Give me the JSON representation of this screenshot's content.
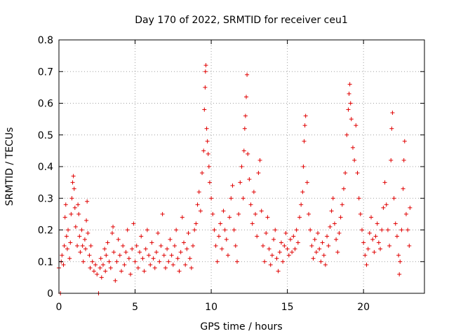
{
  "chart_data": {
    "type": "scatter",
    "title": "Day 170 of 2022, SRMTID for receiver ceu1",
    "xlabel": "GPS time / hours",
    "ylabel": "SRMTID / TECUs",
    "xlim": [
      0,
      24
    ],
    "ylim": [
      0,
      0.8
    ],
    "xticks": [
      0,
      5,
      10,
      15,
      20
    ],
    "xtick_labels": [
      "0",
      "5",
      "10",
      "15",
      "20"
    ],
    "yticks": [
      0,
      0.1,
      0.2,
      0.3,
      0.4,
      0.5,
      0.6,
      0.7,
      0.8
    ],
    "ytick_labels": [
      "0",
      "0.1",
      "0.2",
      "0.3",
      "0.4",
      "0.5",
      "0.6",
      "0.7",
      "0.8"
    ],
    "grid": true,
    "marker": "+",
    "color": "#e00000",
    "series": [
      {
        "name": "SRMTID",
        "points": [
          [
            0.0,
            0.08
          ],
          [
            0.1,
            0.0
          ],
          [
            0.15,
            0.1
          ],
          [
            0.2,
            0.12
          ],
          [
            0.3,
            0.09
          ],
          [
            0.35,
            0.15
          ],
          [
            0.4,
            0.24
          ],
          [
            0.45,
            0.28
          ],
          [
            0.5,
            0.18
          ],
          [
            0.55,
            0.14
          ],
          [
            0.6,
            0.2
          ],
          [
            0.7,
            0.11
          ],
          [
            0.75,
            0.16
          ],
          [
            0.8,
            0.25
          ],
          [
            0.85,
            0.3
          ],
          [
            0.9,
            0.35
          ],
          [
            0.95,
            0.37
          ],
          [
            1.0,
            0.33
          ],
          [
            1.05,
            0.27
          ],
          [
            1.1,
            0.21
          ],
          [
            1.2,
            0.15
          ],
          [
            1.25,
            0.28
          ],
          [
            1.3,
            0.25
          ],
          [
            1.35,
            0.18
          ],
          [
            1.4,
            0.13
          ],
          [
            1.5,
            0.2
          ],
          [
            1.55,
            0.15
          ],
          [
            1.6,
            0.1
          ],
          [
            1.7,
            0.17
          ],
          [
            1.75,
            0.14
          ],
          [
            1.8,
            0.23
          ],
          [
            1.85,
            0.29
          ],
          [
            1.9,
            0.19
          ],
          [
            2.0,
            0.12
          ],
          [
            2.05,
            0.08
          ],
          [
            2.1,
            0.15
          ],
          [
            2.2,
            0.1
          ],
          [
            2.3,
            0.07
          ],
          [
            2.4,
            0.09
          ],
          [
            2.5,
            0.06
          ],
          [
            2.6,
            0.0
          ],
          [
            2.7,
            0.08
          ],
          [
            2.75,
            0.11
          ],
          [
            2.8,
            0.05
          ],
          [
            2.9,
            0.09
          ],
          [
            3.0,
            0.14
          ],
          [
            3.05,
            0.07
          ],
          [
            3.1,
            0.12
          ],
          [
            3.2,
            0.16
          ],
          [
            3.3,
            0.1
          ],
          [
            3.4,
            0.08
          ],
          [
            3.5,
            0.19
          ],
          [
            3.55,
            0.21
          ],
          [
            3.6,
            0.13
          ],
          [
            3.7,
            0.04
          ],
          [
            3.8,
            0.1
          ],
          [
            3.9,
            0.17
          ],
          [
            4.0,
            0.12
          ],
          [
            4.1,
            0.07
          ],
          [
            4.2,
            0.15
          ],
          [
            4.3,
            0.09
          ],
          [
            4.4,
            0.13
          ],
          [
            4.5,
            0.2
          ],
          [
            4.6,
            0.11
          ],
          [
            4.7,
            0.06
          ],
          [
            4.8,
            0.14
          ],
          [
            4.9,
            0.22
          ],
          [
            5.0,
            0.1
          ],
          [
            5.1,
            0.15
          ],
          [
            5.2,
            0.08
          ],
          [
            5.3,
            0.13
          ],
          [
            5.4,
            0.18
          ],
          [
            5.5,
            0.11
          ],
          [
            5.6,
            0.07
          ],
          [
            5.7,
            0.14
          ],
          [
            5.8,
            0.2
          ],
          [
            5.9,
            0.12
          ],
          [
            6.0,
            0.09
          ],
          [
            6.1,
            0.16
          ],
          [
            6.2,
            0.11
          ],
          [
            6.3,
            0.08
          ],
          [
            6.4,
            0.13
          ],
          [
            6.5,
            0.19
          ],
          [
            6.6,
            0.1
          ],
          [
            6.7,
            0.15
          ],
          [
            6.8,
            0.25
          ],
          [
            6.9,
            0.12
          ],
          [
            7.0,
            0.08
          ],
          [
            7.1,
            0.14
          ],
          [
            7.2,
            0.1
          ],
          [
            7.3,
            0.17
          ],
          [
            7.4,
            0.12
          ],
          [
            7.5,
            0.09
          ],
          [
            7.6,
            0.15
          ],
          [
            7.7,
            0.2
          ],
          [
            7.8,
            0.11
          ],
          [
            7.9,
            0.07
          ],
          [
            8.0,
            0.13
          ],
          [
            8.1,
            0.24
          ],
          [
            8.2,
            0.16
          ],
          [
            8.3,
            0.09
          ],
          [
            8.4,
            0.14
          ],
          [
            8.5,
            0.19
          ],
          [
            8.6,
            0.11
          ],
          [
            8.7,
            0.08
          ],
          [
            8.8,
            0.15
          ],
          [
            8.9,
            0.2
          ],
          [
            9.0,
            0.22
          ],
          [
            9.1,
            0.28
          ],
          [
            9.2,
            0.32
          ],
          [
            9.3,
            0.26
          ],
          [
            9.4,
            0.38
          ],
          [
            9.5,
            0.45
          ],
          [
            9.55,
            0.58
          ],
          [
            9.6,
            0.65
          ],
          [
            9.62,
            0.7
          ],
          [
            9.65,
            0.72
          ],
          [
            9.7,
            0.52
          ],
          [
            9.75,
            0.48
          ],
          [
            9.8,
            0.44
          ],
          [
            9.85,
            0.4
          ],
          [
            9.9,
            0.35
          ],
          [
            10.0,
            0.3
          ],
          [
            10.1,
            0.25
          ],
          [
            10.2,
            0.2
          ],
          [
            10.3,
            0.15
          ],
          [
            10.4,
            0.1
          ],
          [
            10.5,
            0.18
          ],
          [
            10.6,
            0.22
          ],
          [
            10.7,
            0.14
          ],
          [
            10.8,
            0.26
          ],
          [
            10.9,
            0.2
          ],
          [
            11.0,
            0.17
          ],
          [
            11.1,
            0.12
          ],
          [
            11.2,
            0.24
          ],
          [
            11.3,
            0.3
          ],
          [
            11.4,
            0.34
          ],
          [
            11.5,
            0.2
          ],
          [
            11.6,
            0.15
          ],
          [
            11.7,
            0.1
          ],
          [
            11.8,
            0.25
          ],
          [
            11.9,
            0.35
          ],
          [
            12.0,
            0.4
          ],
          [
            12.1,
            0.3
          ],
          [
            12.15,
            0.45
          ],
          [
            12.2,
            0.52
          ],
          [
            12.25,
            0.56
          ],
          [
            12.3,
            0.62
          ],
          [
            12.35,
            0.69
          ],
          [
            12.4,
            0.44
          ],
          [
            12.5,
            0.36
          ],
          [
            12.6,
            0.28
          ],
          [
            12.7,
            0.22
          ],
          [
            12.8,
            0.32
          ],
          [
            12.9,
            0.25
          ],
          [
            13.0,
            0.18
          ],
          [
            13.1,
            0.38
          ],
          [
            13.2,
            0.42
          ],
          [
            13.3,
            0.26
          ],
          [
            13.4,
            0.15
          ],
          [
            13.5,
            0.1
          ],
          [
            13.6,
            0.19
          ],
          [
            13.7,
            0.24
          ],
          [
            13.8,
            0.14
          ],
          [
            13.9,
            0.09
          ],
          [
            14.0,
            0.12
          ],
          [
            14.1,
            0.17
          ],
          [
            14.2,
            0.2
          ],
          [
            14.3,
            0.11
          ],
          [
            14.4,
            0.07
          ],
          [
            14.5,
            0.13
          ],
          [
            14.6,
            0.16
          ],
          [
            14.7,
            0.1
          ],
          [
            14.8,
            0.15
          ],
          [
            14.9,
            0.19
          ],
          [
            15.0,
            0.14
          ],
          [
            15.1,
            0.12
          ],
          [
            15.2,
            0.17
          ],
          [
            15.3,
            0.13
          ],
          [
            15.4,
            0.18
          ],
          [
            15.5,
            0.14
          ],
          [
            15.6,
            0.2
          ],
          [
            15.7,
            0.16
          ],
          [
            15.8,
            0.24
          ],
          [
            15.9,
            0.28
          ],
          [
            16.0,
            0.32
          ],
          [
            16.05,
            0.4
          ],
          [
            16.1,
            0.48
          ],
          [
            16.15,
            0.53
          ],
          [
            16.2,
            0.56
          ],
          [
            16.3,
            0.35
          ],
          [
            16.4,
            0.25
          ],
          [
            16.5,
            0.2
          ],
          [
            16.6,
            0.15
          ],
          [
            16.7,
            0.11
          ],
          [
            16.8,
            0.17
          ],
          [
            16.9,
            0.13
          ],
          [
            17.0,
            0.19
          ],
          [
            17.1,
            0.14
          ],
          [
            17.2,
            0.1
          ],
          [
            17.3,
            0.16
          ],
          [
            17.4,
            0.12
          ],
          [
            17.5,
            0.09
          ],
          [
            17.6,
            0.18
          ],
          [
            17.7,
            0.15
          ],
          [
            17.8,
            0.21
          ],
          [
            17.9,
            0.26
          ],
          [
            18.0,
            0.3
          ],
          [
            18.1,
            0.22
          ],
          [
            18.2,
            0.17
          ],
          [
            18.3,
            0.13
          ],
          [
            18.4,
            0.19
          ],
          [
            18.5,
            0.24
          ],
          [
            18.6,
            0.28
          ],
          [
            18.7,
            0.33
          ],
          [
            18.8,
            0.38
          ],
          [
            18.9,
            0.5
          ],
          [
            19.0,
            0.58
          ],
          [
            19.05,
            0.63
          ],
          [
            19.1,
            0.66
          ],
          [
            19.15,
            0.6
          ],
          [
            19.2,
            0.55
          ],
          [
            19.3,
            0.46
          ],
          [
            19.4,
            0.42
          ],
          [
            19.5,
            0.53
          ],
          [
            19.6,
            0.38
          ],
          [
            19.7,
            0.3
          ],
          [
            19.8,
            0.25
          ],
          [
            19.9,
            0.2
          ],
          [
            20.0,
            0.16
          ],
          [
            20.1,
            0.12
          ],
          [
            20.2,
            0.09
          ],
          [
            20.3,
            0.14
          ],
          [
            20.4,
            0.19
          ],
          [
            20.5,
            0.24
          ],
          [
            20.6,
            0.17
          ],
          [
            20.7,
            0.13
          ],
          [
            20.8,
            0.18
          ],
          [
            20.9,
            0.22
          ],
          [
            21.0,
            0.16
          ],
          [
            21.1,
            0.14
          ],
          [
            21.2,
            0.2
          ],
          [
            21.3,
            0.27
          ],
          [
            21.4,
            0.35
          ],
          [
            21.5,
            0.28
          ],
          [
            21.6,
            0.2
          ],
          [
            21.7,
            0.15
          ],
          [
            21.8,
            0.42
          ],
          [
            21.85,
            0.52
          ],
          [
            21.9,
            0.57
          ],
          [
            22.0,
            0.3
          ],
          [
            22.1,
            0.22
          ],
          [
            22.2,
            0.18
          ],
          [
            22.3,
            0.12
          ],
          [
            22.35,
            0.06
          ],
          [
            22.4,
            0.1
          ],
          [
            22.5,
            0.2
          ],
          [
            22.6,
            0.33
          ],
          [
            22.65,
            0.42
          ],
          [
            22.7,
            0.48
          ],
          [
            22.8,
            0.25
          ],
          [
            22.9,
            0.2
          ],
          [
            23.0,
            0.15
          ],
          [
            23.05,
            0.27
          ]
        ]
      }
    ]
  }
}
